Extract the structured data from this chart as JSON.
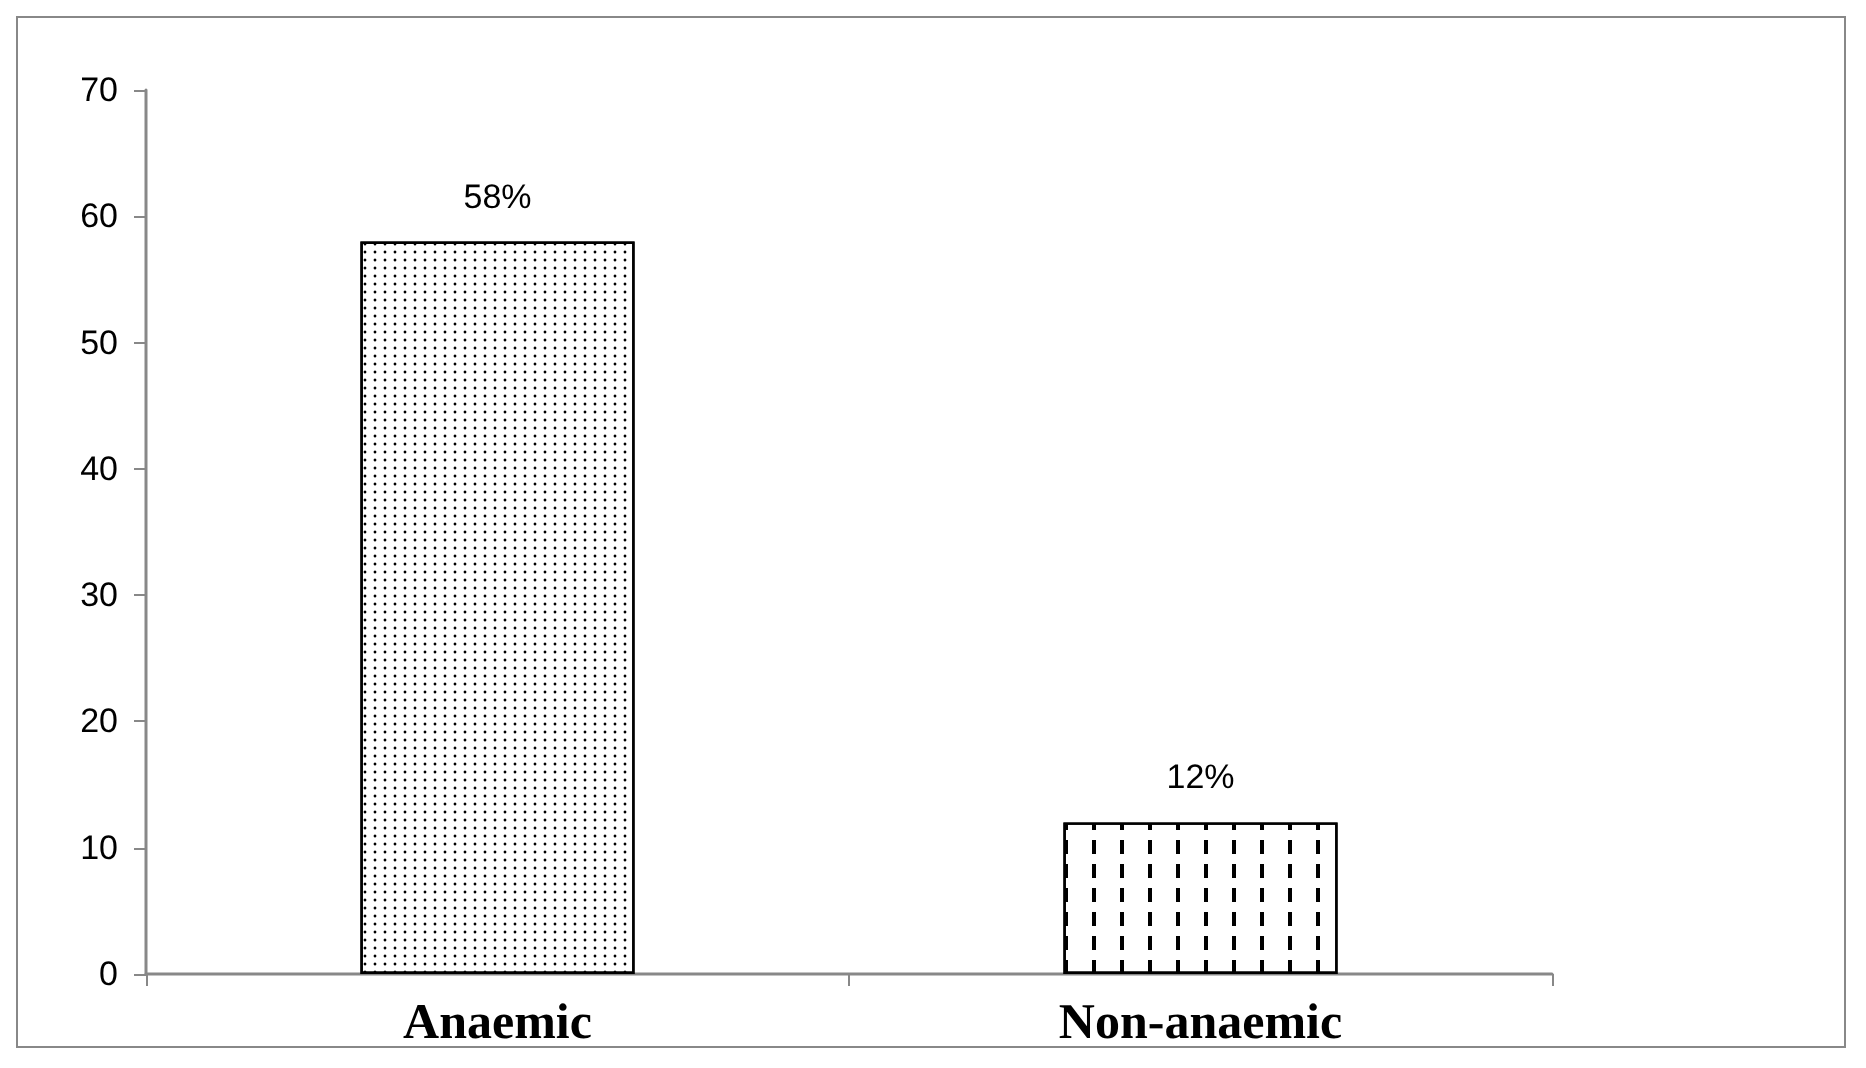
{
  "chart_data": {
    "type": "bar",
    "categories": [
      "Anaemic",
      "Non-anaemic"
    ],
    "values": [
      58,
      12
    ],
    "colors": [
      "#ffffff",
      "#ffffff"
    ],
    "value_labels": [
      "58%",
      "12%"
    ],
    "ylim": [
      0,
      70
    ],
    "yticks": [
      0,
      10,
      20,
      30,
      40,
      50,
      60,
      70
    ],
    "grid": false
  }
}
